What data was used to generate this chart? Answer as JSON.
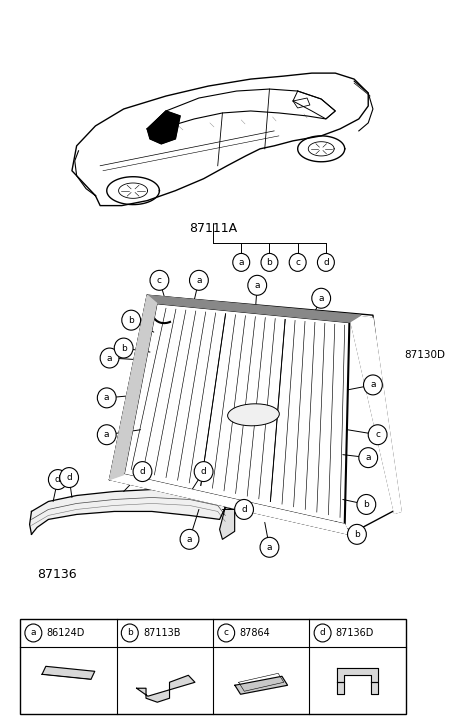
{
  "bg_color": "#ffffff",
  "line_color": "#000000",
  "part_labels": {
    "a": "86124D",
    "b": "87113B",
    "c": "87864",
    "d": "87136D"
  },
  "part_numbers": {
    "main_glass": "87111A",
    "moulding": "87130D",
    "lower_moulding": "87136"
  },
  "font_size_small": 6.5,
  "font_size_mid": 7.5,
  "font_size_large": 9
}
